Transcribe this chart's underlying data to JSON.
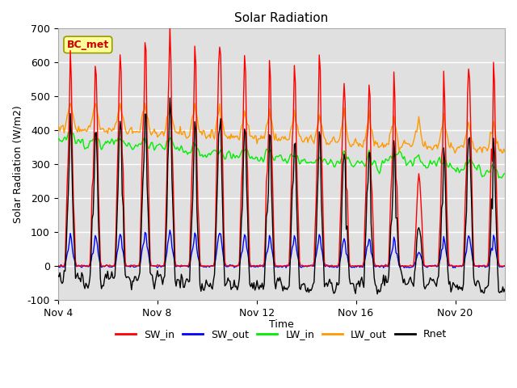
{
  "title": "Solar Radiation",
  "ylabel": "Solar Radiation (W/m2)",
  "xlabel": "Time",
  "ylim": [
    -100,
    700
  ],
  "xlim": [
    0,
    432
  ],
  "annotation": "BC_met",
  "annotation_color": "#cc0000",
  "annotation_bg": "#ffff99",
  "background_color": "#e0e0e0",
  "grid_color": "white",
  "series": {
    "SW_in": {
      "color": "#ff0000",
      "lw": 1.0
    },
    "SW_out": {
      "color": "#0000ff",
      "lw": 1.0
    },
    "LW_in": {
      "color": "#00ee00",
      "lw": 1.0
    },
    "LW_out": {
      "color": "#ff9900",
      "lw": 1.0
    },
    "Rnet": {
      "color": "#000000",
      "lw": 1.0
    }
  },
  "xtick_positions": [
    0,
    96,
    192,
    288,
    384
  ],
  "xtick_labels": [
    "Nov 4",
    "Nov 8",
    "Nov 12",
    "Nov 16",
    "Nov 20"
  ],
  "ytick_positions": [
    -100,
    0,
    100,
    200,
    300,
    400,
    500,
    600,
    700
  ],
  "legend_entries": [
    "SW_in",
    "SW_out",
    "LW_in",
    "LW_out",
    "Rnet"
  ],
  "legend_colors": [
    "#ff0000",
    "#0000ff",
    "#00ee00",
    "#ff9900",
    "#000000"
  ],
  "points_per_day": 24,
  "num_days": 18
}
